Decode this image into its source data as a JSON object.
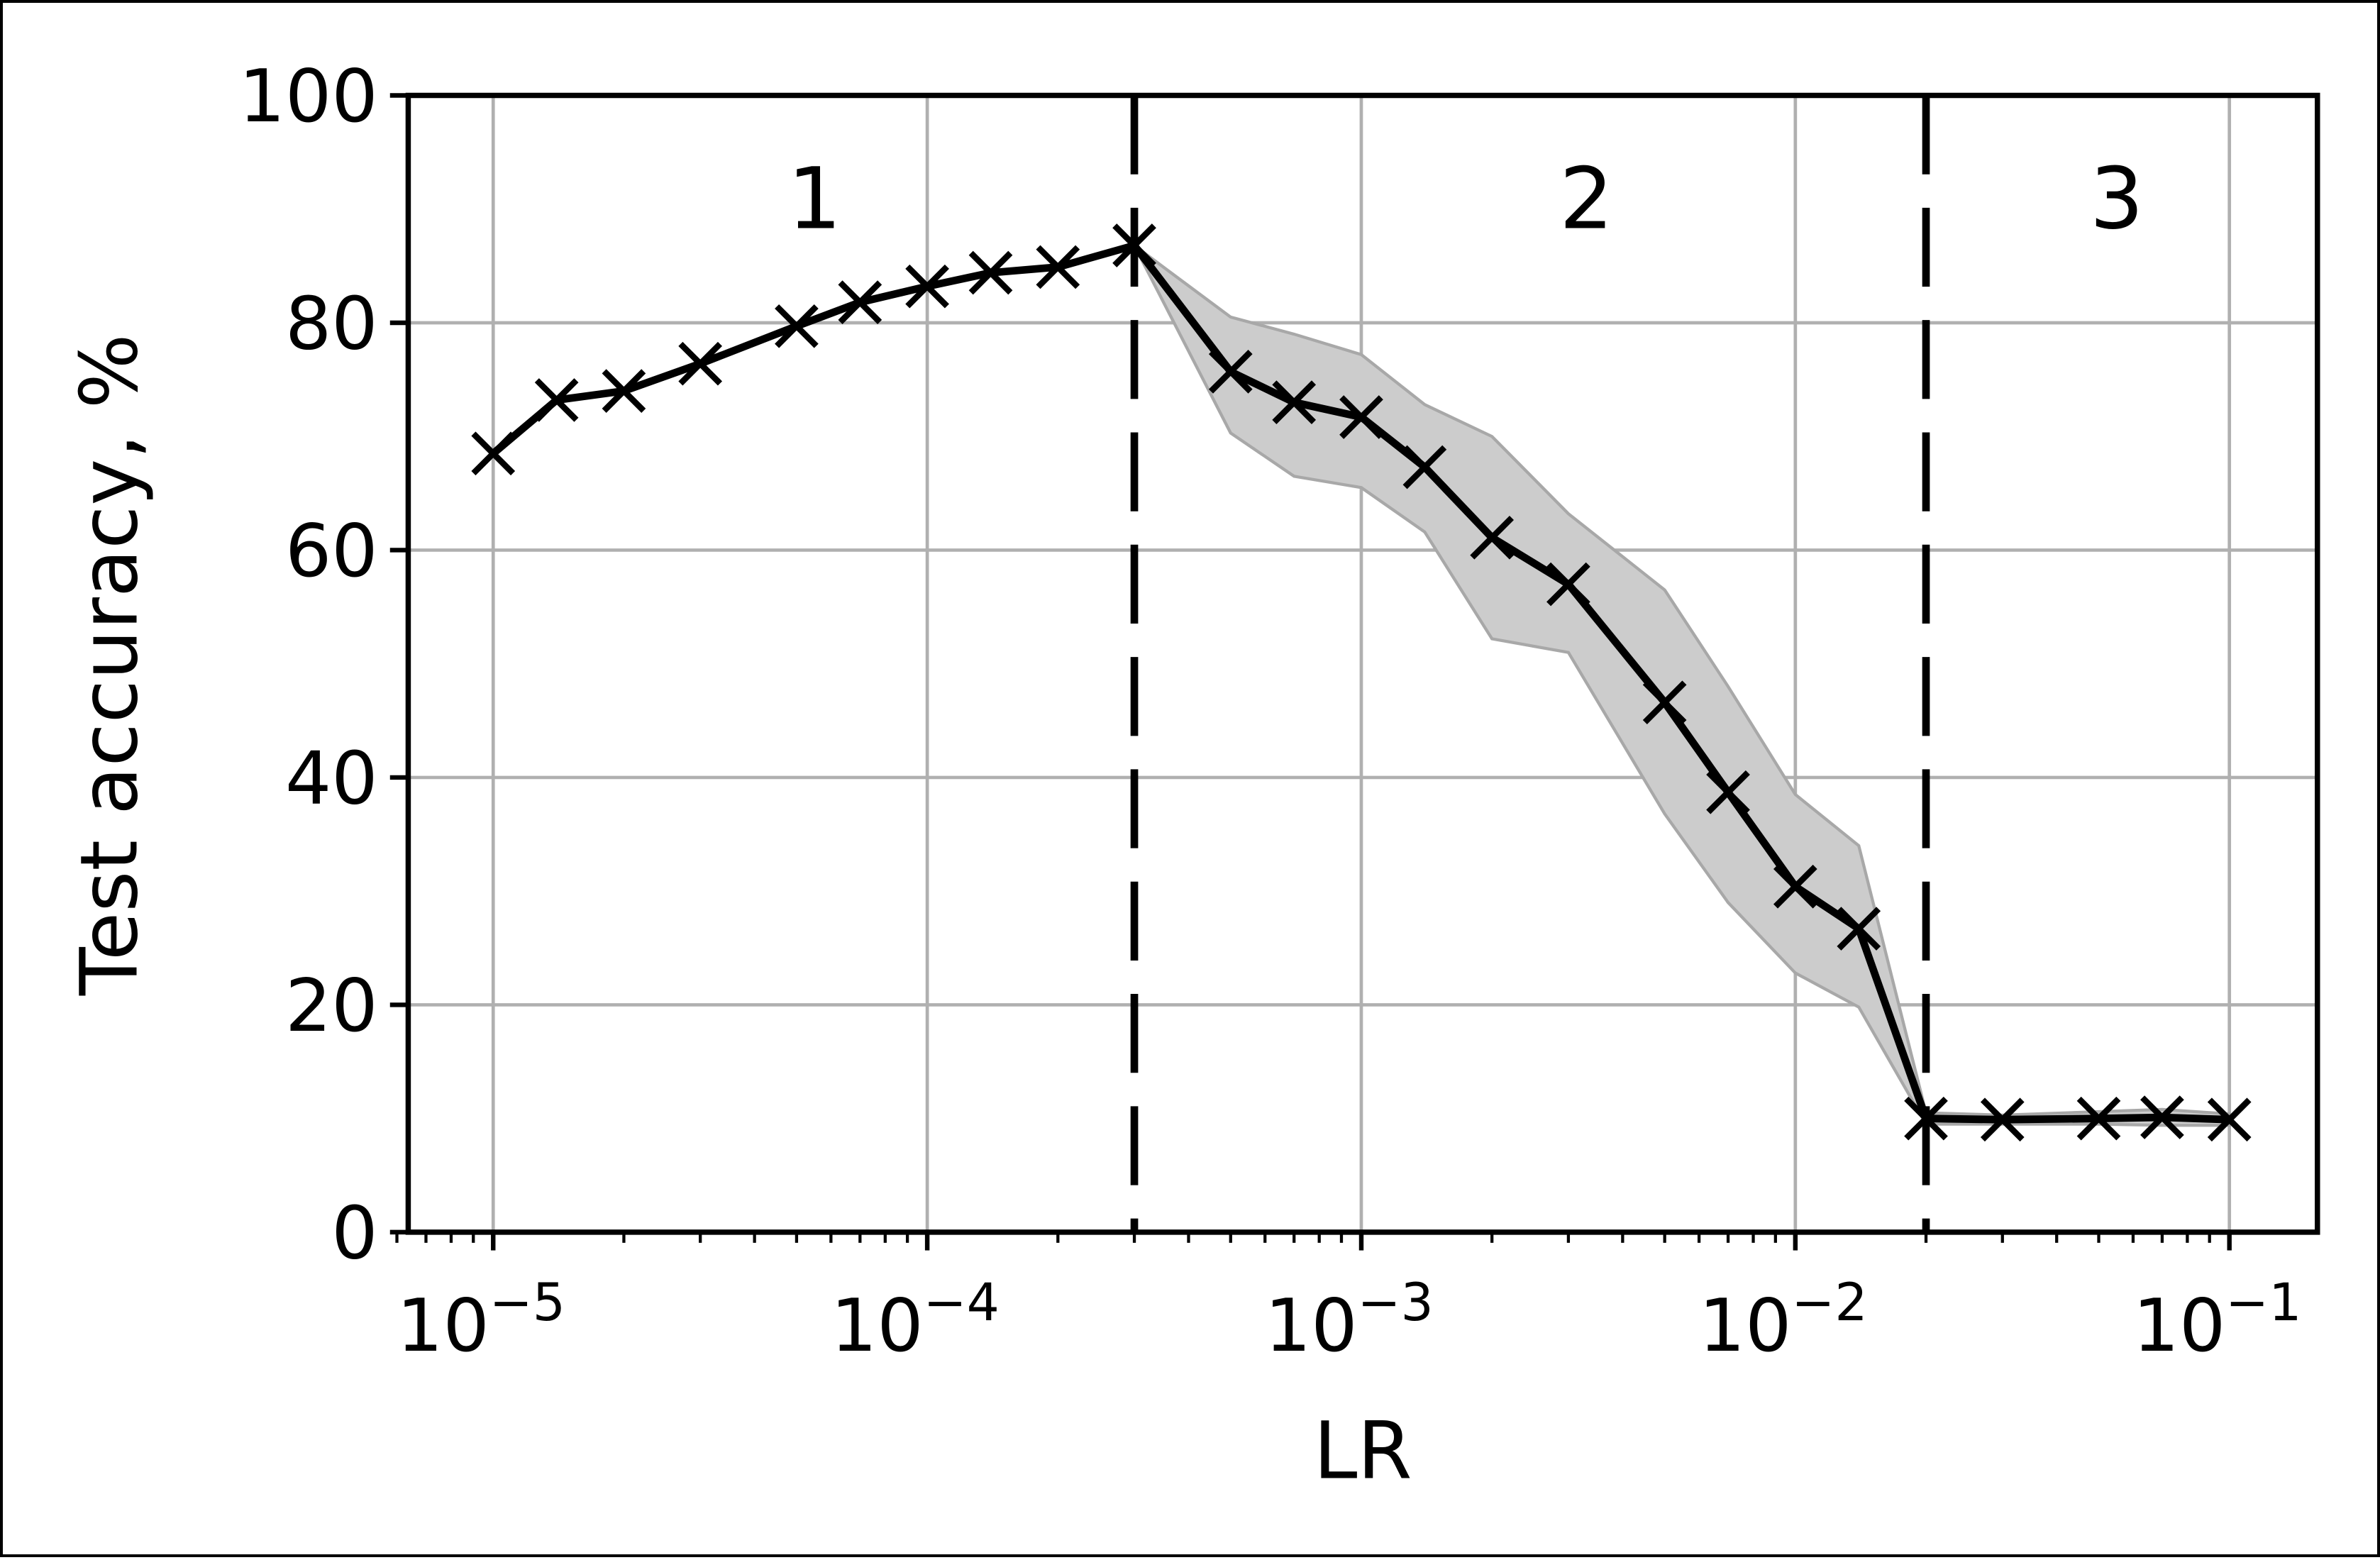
{
  "chart_data": {
    "type": "line",
    "title": "",
    "xlabel": "LR",
    "ylabel": "Test accuracy, %",
    "xscale": "log",
    "xlim": [
      6e-06,
      0.15
    ],
    "ylim": [
      0,
      100
    ],
    "grid": true,
    "legend": null,
    "x_ticks": [
      {
        "value": 1e-05,
        "base": "10",
        "exp": "−5"
      },
      {
        "value": 0.0001,
        "base": "10",
        "exp": "−4"
      },
      {
        "value": 0.001,
        "base": "10",
        "exp": "−3"
      },
      {
        "value": 0.01,
        "base": "10",
        "exp": "−2"
      },
      {
        "value": 0.1,
        "base": "10",
        "exp": "−1"
      }
    ],
    "y_ticks": [
      0,
      20,
      40,
      60,
      80,
      100
    ],
    "region_boundaries": [
      0.0003,
      0.02
    ],
    "region_labels": [
      {
        "label": "1",
        "x": 5.5e-05,
        "y": 91
      },
      {
        "label": "2",
        "x": 0.0033,
        "y": 91
      },
      {
        "label": "3",
        "x": 0.055,
        "y": 91
      }
    ],
    "x": [
      1e-05,
      1.4e-05,
      2e-05,
      3e-05,
      5e-05,
      7e-05,
      0.0001,
      0.00014,
      0.0002,
      0.0003,
      0.0005,
      0.0007,
      0.001,
      0.0014,
      0.002,
      0.003,
      0.005,
      0.007,
      0.01,
      0.014,
      0.02,
      0.03,
      0.05,
      0.07,
      0.1
    ],
    "series": [
      {
        "name": "Test accuracy",
        "marker": "x",
        "color": "#000000",
        "values": [
          68.5,
          73.2,
          74.0,
          76.4,
          79.7,
          81.8,
          83.2,
          84.4,
          84.9,
          86.8,
          75.7,
          73.0,
          71.7,
          67.3,
          61.1,
          57.0,
          46.6,
          38.7,
          30.4,
          26.7,
          10.0,
          9.9,
          10.0,
          10.1,
          9.9
        ],
        "band_upper": [
          68.5,
          73.2,
          74.0,
          76.4,
          79.7,
          81.8,
          83.2,
          84.4,
          84.9,
          86.8,
          80.5,
          79.0,
          77.2,
          72.8,
          70.0,
          63.2,
          56.5,
          48.0,
          38.5,
          34.0,
          10.5,
          10.3,
          10.6,
          10.8,
          10.4
        ],
        "band_lower": [
          68.5,
          73.2,
          74.0,
          76.4,
          79.7,
          81.8,
          83.2,
          84.4,
          84.9,
          86.8,
          70.3,
          66.5,
          65.5,
          61.6,
          52.2,
          51.0,
          36.8,
          29.0,
          22.8,
          19.8,
          9.5,
          9.5,
          9.5,
          9.4,
          9.4
        ]
      }
    ],
    "colors": {
      "line": "#000000",
      "band_fill": "#cccccc",
      "band_edge": "#a8a8a8",
      "grid": "#b0b0b0",
      "axes": "#000000"
    }
  }
}
